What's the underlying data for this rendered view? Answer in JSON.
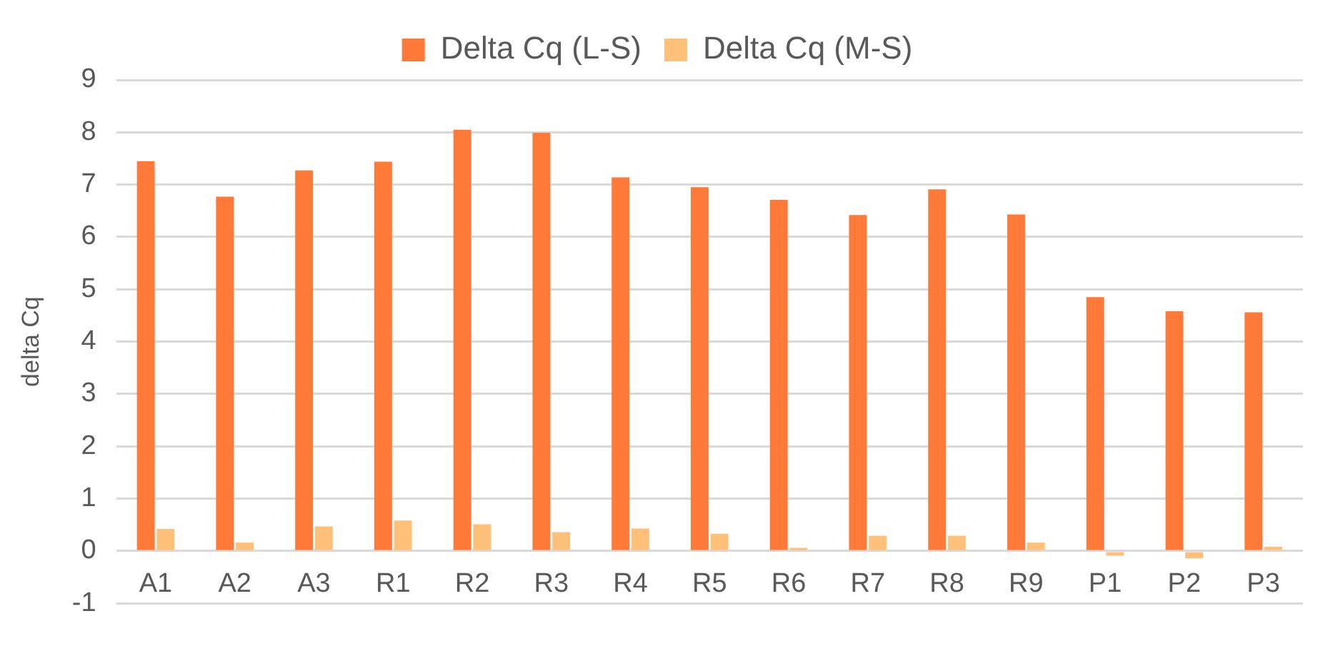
{
  "chart_data": {
    "type": "bar",
    "ylabel": "delta Cq",
    "categories": [
      "A1",
      "A2",
      "A3",
      "R1",
      "R2",
      "R3",
      "R4",
      "R5",
      "R6",
      "R7",
      "R8",
      "R9",
      "P1",
      "P2",
      "P3"
    ],
    "series": [
      {
        "name": "Delta Cq (L-S)",
        "color": "#ff7a38",
        "values": [
          7.45,
          6.77,
          7.27,
          7.44,
          8.05,
          7.99,
          7.14,
          6.95,
          6.71,
          6.42,
          6.91,
          6.43,
          4.85,
          4.58,
          4.56
        ]
      },
      {
        "name": "Delta Cq (M-S)",
        "color": "#ffc07a",
        "values": [
          0.42,
          0.16,
          0.47,
          0.58,
          0.51,
          0.36,
          0.43,
          0.33,
          0.06,
          0.29,
          0.29,
          0.16,
          -0.09,
          -0.14,
          0.08
        ]
      }
    ],
    "ylim": [
      -1,
      9
    ],
    "yticks": [
      -1,
      0,
      1,
      2,
      3,
      4,
      5,
      6,
      7,
      8,
      9
    ],
    "grid": "y",
    "legend": "top"
  }
}
